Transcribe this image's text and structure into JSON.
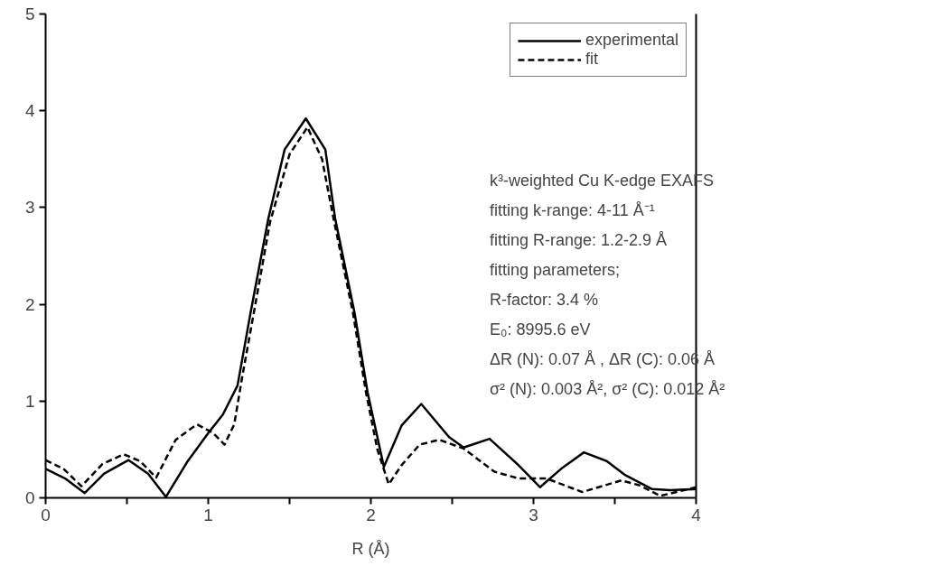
{
  "chart_data": {
    "type": "line",
    "xlabel": "R (Å)",
    "xlim": [
      0,
      4
    ],
    "ylim": [
      0,
      5
    ],
    "xticks": [
      0,
      {
        "value": 0.5,
        "label": null
      },
      1,
      {
        "value": 1.5,
        "label": null
      },
      2,
      {
        "value": 2.5,
        "label": null
      },
      3,
      {
        "value": 3.5,
        "label": null
      },
      4
    ],
    "yticks": [
      0,
      1,
      2,
      3,
      4,
      5
    ],
    "grid": false,
    "legend": "top right",
    "marker": "none",
    "series": [
      {
        "name": "experimental",
        "color": "#000000",
        "line_style": "solid",
        "x": [
          0,
          0.12,
          0.24,
          0.36,
          0.51,
          0.63,
          0.74,
          0.87,
          1.0,
          1.09,
          1.18,
          1.26,
          1.37,
          1.47,
          1.6,
          1.72,
          1.78,
          1.9,
          1.98,
          2.08,
          2.19,
          2.31,
          2.48,
          2.57,
          2.73,
          2.9,
          3.04,
          3.17,
          3.31,
          3.45,
          3.56,
          3.73,
          3.84,
          4.0
        ],
        "values": [
          0.3,
          0.2,
          0.05,
          0.25,
          0.39,
          0.25,
          0.01,
          0.37,
          0.67,
          0.86,
          1.16,
          1.91,
          2.89,
          3.6,
          3.92,
          3.6,
          2.89,
          1.91,
          1.09,
          0.32,
          0.75,
          0.97,
          0.63,
          0.52,
          0.61,
          0.35,
          0.11,
          0.3,
          0.47,
          0.38,
          0.24,
          0.09,
          0.08,
          0.09
        ]
      },
      {
        "name": "fit",
        "color": "#000000",
        "line_style": "dashed",
        "x": [
          0,
          0.11,
          0.22,
          0.35,
          0.48,
          0.58,
          0.68,
          0.8,
          0.93,
          1.03,
          1.1,
          1.16,
          1.21,
          1.28,
          1.38,
          1.5,
          1.61,
          1.7,
          1.77,
          1.89,
          1.97,
          2.04,
          2.11,
          2.19,
          2.3,
          2.42,
          2.57,
          2.76,
          2.91,
          3.08,
          3.3,
          3.54,
          3.65,
          3.78,
          4.0
        ],
        "values": [
          0.39,
          0.3,
          0.12,
          0.35,
          0.45,
          0.38,
          0.21,
          0.6,
          0.76,
          0.67,
          0.55,
          0.76,
          1.26,
          1.91,
          2.85,
          3.55,
          3.83,
          3.5,
          2.89,
          1.91,
          1.09,
          0.5,
          0.14,
          0.34,
          0.55,
          0.6,
          0.51,
          0.27,
          0.2,
          0.2,
          0.06,
          0.18,
          0.13,
          0.02,
          0.11
        ]
      }
    ],
    "annotations": [
      "k³-weighted Cu K-edge EXAFS",
      "fitting k-range: 4-11 Å⁻¹",
      "fitting R-range: 1.2-2.9 Å",
      "fitting parameters;",
      "R-factor: 3.4 %",
      "E₀: 8995.6 eV",
      "ΔR (N): 0.07 Å , ΔR (C): 0.06 Å",
      "σ² (N): 0.003 Å², σ² (C): 0.012 Å²"
    ]
  }
}
